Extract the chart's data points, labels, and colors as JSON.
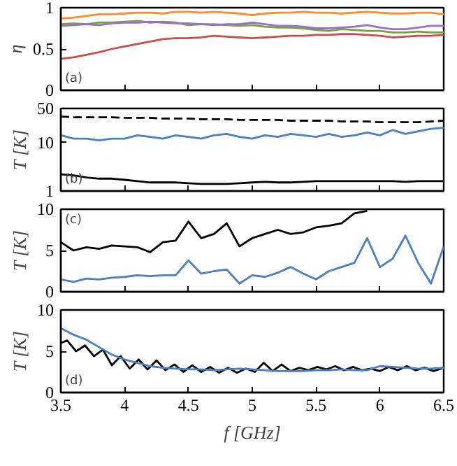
{
  "chart_data": [
    {
      "type": "line",
      "ylabel": "η",
      "annotations": [
        "(a)"
      ],
      "tick_labels": "y",
      "xlim": [
        3.5,
        6.5
      ],
      "xticks": [
        3.5,
        4,
        4.5,
        5,
        5.5,
        6,
        6.5
      ],
      "ylim": [
        0,
        1
      ],
      "yticks": [
        0,
        0.5,
        1
      ],
      "x": [
        3.5,
        3.6,
        3.7,
        3.8,
        3.9,
        4.0,
        4.1,
        4.2,
        4.3,
        4.4,
        4.5,
        4.6,
        4.7,
        4.8,
        4.9,
        5.0,
        5.1,
        5.2,
        5.3,
        5.4,
        5.5,
        5.6,
        5.7,
        5.8,
        5.9,
        6.0,
        6.1,
        6.2,
        6.3,
        6.4,
        6.5
      ],
      "series": [
        {
          "color": "#ff8c2e",
          "values": [
            0.87,
            0.88,
            0.9,
            0.92,
            0.92,
            0.93,
            0.94,
            0.94,
            0.93,
            0.95,
            0.95,
            0.94,
            0.95,
            0.94,
            0.93,
            0.91,
            0.93,
            0.94,
            0.94,
            0.95,
            0.94,
            0.94,
            0.93,
            0.94,
            0.95,
            0.94,
            0.93,
            0.93,
            0.94,
            0.94,
            0.92
          ]
        },
        {
          "color": "#77a33a",
          "values": [
            0.8,
            0.81,
            0.8,
            0.82,
            0.82,
            0.83,
            0.84,
            0.82,
            0.83,
            0.82,
            0.79,
            0.8,
            0.8,
            0.79,
            0.78,
            0.79,
            0.77,
            0.76,
            0.76,
            0.75,
            0.73,
            0.72,
            0.74,
            0.73,
            0.72,
            0.72,
            0.7,
            0.7,
            0.71,
            0.7,
            0.7
          ]
        },
        {
          "color": "#9b6fc9",
          "values": [
            0.78,
            0.79,
            0.8,
            0.79,
            0.81,
            0.82,
            0.82,
            0.83,
            0.82,
            0.81,
            0.81,
            0.8,
            0.79,
            0.8,
            0.8,
            0.82,
            0.8,
            0.78,
            0.78,
            0.77,
            0.75,
            0.75,
            0.76,
            0.77,
            0.79,
            0.76,
            0.74,
            0.74,
            0.76,
            0.78,
            0.78
          ]
        },
        {
          "color": "#c84e4e",
          "values": [
            0.38,
            0.4,
            0.43,
            0.46,
            0.5,
            0.53,
            0.56,
            0.59,
            0.62,
            0.63,
            0.63,
            0.64,
            0.66,
            0.65,
            0.64,
            0.63,
            0.64,
            0.65,
            0.66,
            0.66,
            0.67,
            0.67,
            0.68,
            0.68,
            0.67,
            0.66,
            0.64,
            0.65,
            0.66,
            0.66,
            0.67
          ]
        }
      ]
    },
    {
      "type": "line",
      "ylabel": "T [K]",
      "annotations": [
        "(b)"
      ],
      "tick_labels": "y",
      "log": "y",
      "xlim": [
        3.5,
        6.5
      ],
      "xticks": [
        3.5,
        4,
        4.5,
        5,
        5.5,
        6,
        6.5
      ],
      "ylim": [
        1,
        50
      ],
      "yticks": [
        1,
        10,
        50
      ],
      "x": [
        3.5,
        3.6,
        3.7,
        3.8,
        3.9,
        4.0,
        4.1,
        4.2,
        4.3,
        4.4,
        4.5,
        4.6,
        4.7,
        4.8,
        4.9,
        5.0,
        5.1,
        5.2,
        5.3,
        5.4,
        5.5,
        5.6,
        5.7,
        5.8,
        5.9,
        6.0,
        6.1,
        6.2,
        6.3,
        6.4,
        6.5
      ],
      "series": [
        {
          "color": "#000000",
          "line_style": "dashed",
          "values": [
            34,
            33,
            33,
            33,
            33,
            32,
            32,
            32,
            31,
            31,
            31,
            30,
            30,
            30,
            29,
            29,
            29,
            29,
            28,
            28,
            28,
            28,
            27,
            27,
            27,
            26,
            26,
            26,
            26,
            27,
            28
          ]
        },
        {
          "color": "#4a7fc1",
          "values": [
            14,
            12,
            12,
            11,
            12,
            12,
            14,
            13,
            12,
            14,
            13,
            12,
            14,
            15,
            13,
            12,
            14,
            13,
            15,
            14,
            13,
            15,
            13,
            14,
            16,
            14,
            18,
            15,
            17,
            19,
            20
          ]
        },
        {
          "color": "#000000",
          "values": [
            2.2,
            2.1,
            1.9,
            1.8,
            1.8,
            1.7,
            1.6,
            1.5,
            1.5,
            1.5,
            1.45,
            1.4,
            1.4,
            1.4,
            1.45,
            1.5,
            1.55,
            1.5,
            1.5,
            1.55,
            1.6,
            1.6,
            1.6,
            1.6,
            1.6,
            1.6,
            1.6,
            1.55,
            1.6,
            1.6,
            1.6
          ]
        }
      ]
    },
    {
      "type": "line",
      "ylabel": "T [K]",
      "annotations": [
        "(c)"
      ],
      "tick_labels": "y",
      "xlim": [
        3.5,
        6.5
      ],
      "xticks": [
        3.5,
        4,
        4.5,
        5,
        5.5,
        6,
        6.5
      ],
      "ylim": [
        0,
        10
      ],
      "yticks": [
        0,
        5,
        10
      ],
      "x": [
        3.5,
        3.6,
        3.7,
        3.8,
        3.9,
        4.0,
        4.1,
        4.2,
        4.3,
        4.4,
        4.5,
        4.6,
        4.7,
        4.8,
        4.9,
        5.0,
        5.1,
        5.2,
        5.3,
        5.4,
        5.5,
        5.6,
        5.7,
        5.8,
        5.9,
        6.0,
        6.1,
        6.2,
        6.3,
        6.4,
        6.5
      ],
      "series": [
        {
          "color": "#000000",
          "values": [
            6.0,
            5.0,
            5.4,
            5.2,
            5.6,
            5.5,
            5.4,
            4.8,
            6.0,
            6.2,
            8.5,
            6.5,
            7.0,
            8.3,
            5.5,
            6.5,
            7.0,
            7.5,
            7.0,
            7.2,
            7.8,
            8.0,
            8.3,
            9.5,
            9.8,
            null,
            null,
            null,
            null,
            null,
            null
          ]
        },
        {
          "color": "#4a7fc1",
          "values": [
            1.5,
            1.2,
            1.6,
            1.5,
            1.7,
            1.8,
            2.0,
            1.9,
            2.0,
            2.0,
            3.8,
            2.2,
            2.5,
            2.7,
            1.0,
            2.0,
            1.8,
            2.3,
            3.0,
            2.2,
            1.5,
            2.5,
            3.0,
            3.5,
            6.5,
            3.0,
            4.0,
            6.8,
            3.5,
            1.0,
            5.5
          ]
        }
      ]
    },
    {
      "type": "line",
      "xlabel": "f [GHz]",
      "ylabel": "T [K]",
      "annotations": [
        "(d)"
      ],
      "xlim": [
        3.5,
        6.5
      ],
      "xticks": [
        3.5,
        4,
        4.5,
        5,
        5.5,
        6,
        6.5
      ],
      "ylim": [
        0,
        10
      ],
      "yticks": [
        0,
        5,
        10
      ],
      "x": [
        3.5,
        3.6,
        3.7,
        3.8,
        3.9,
        4.0,
        4.1,
        4.2,
        4.3,
        4.4,
        4.5,
        4.6,
        4.7,
        4.8,
        4.9,
        5.0,
        5.1,
        5.2,
        5.3,
        5.4,
        5.5,
        5.6,
        5.7,
        5.8,
        5.9,
        6.0,
        6.1,
        6.2,
        6.3,
        6.4,
        6.5
      ],
      "series": [
        {
          "color": "#000000",
          "x": [
            3.5,
            3.55,
            3.62,
            3.69,
            3.76,
            3.83,
            3.9,
            3.97,
            4.04,
            4.11,
            4.18,
            4.25,
            4.32,
            4.39,
            4.46,
            4.53,
            4.6,
            4.67,
            4.74,
            4.81,
            4.88,
            4.95,
            5.02,
            5.09,
            5.16,
            5.23,
            5.3,
            5.37,
            5.44,
            5.51,
            5.58,
            5.65,
            5.72,
            5.79,
            5.86,
            5.93,
            6.0,
            6.07,
            6.14,
            6.21,
            6.28,
            6.35,
            6.42,
            6.5
          ],
          "values": [
            6.0,
            6.3,
            5.0,
            5.7,
            4.4,
            5.2,
            3.3,
            4.4,
            2.9,
            4.0,
            2.8,
            3.9,
            2.7,
            3.4,
            2.5,
            3.3,
            2.5,
            3.1,
            2.4,
            3.0,
            2.4,
            2.9,
            2.5,
            3.6,
            2.6,
            3.4,
            2.6,
            3.0,
            2.7,
            3.1,
            2.8,
            3.2,
            2.7,
            3.1,
            2.7,
            2.9,
            2.6,
            3.1,
            2.7,
            3.2,
            2.7,
            3.0,
            2.6,
            3.0
          ]
        },
        {
          "color": "#4a7fc1",
          "values": [
            7.8,
            7.0,
            6.4,
            5.5,
            4.6,
            4.0,
            3.6,
            3.2,
            3.0,
            2.9,
            2.8,
            2.8,
            2.7,
            2.8,
            2.9,
            2.8,
            2.7,
            2.6,
            2.6,
            2.6,
            2.7,
            2.7,
            2.8,
            2.7,
            2.7,
            3.2,
            3.1,
            3.0,
            2.9,
            2.9,
            3.0
          ]
        }
      ]
    }
  ]
}
